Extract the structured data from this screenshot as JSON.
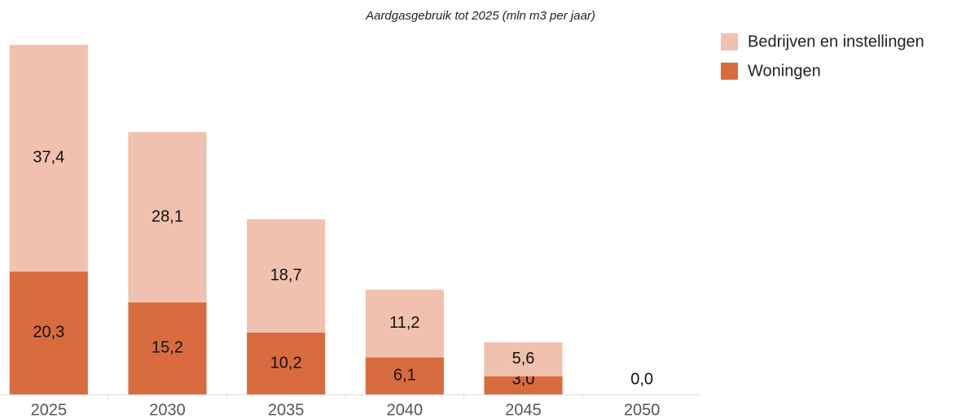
{
  "chart_data": {
    "type": "stacked_bar",
    "title": "Aardgasgebruik tot 2025 (mln m3 per jaar)",
    "categories": [
      "2025",
      "2030",
      "2035",
      "2040",
      "2045",
      "2050"
    ],
    "series": [
      {
        "name": "Woningen",
        "color": "#d96c3f",
        "values": [
          20.3,
          15.2,
          10.2,
          6.1,
          3.0,
          0.0
        ],
        "value_labels": [
          "20,3",
          "15,2",
          "10,2",
          "6,1",
          "3,0",
          "0,0"
        ]
      },
      {
        "name": "Bedrijven en instellingen",
        "color": "#f0c1ae",
        "values": [
          37.4,
          28.1,
          18.7,
          11.2,
          5.6,
          0.0
        ],
        "value_labels": [
          "37,4",
          "28,1",
          "18,7",
          "11,2",
          "5,6",
          null
        ]
      }
    ],
    "ylim": [
      0,
      60
    ],
    "legend": "top-right"
  }
}
